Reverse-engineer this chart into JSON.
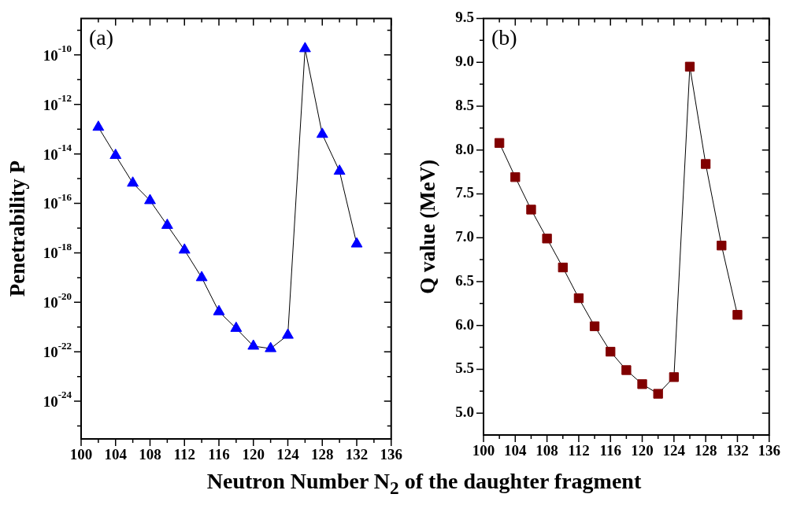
{
  "chart_data": [
    {
      "type": "line",
      "ylabel": "Penetrability P",
      "xlabel": "Neutron Number N$_{2}$ of the daughter fragment",
      "annotations": [
        "(a)"
      ],
      "log": "y",
      "marker": "triangle",
      "grid": false,
      "legend": false,
      "x": [
        102,
        104,
        106,
        108,
        110,
        112,
        114,
        116,
        118,
        120,
        122,
        124,
        126,
        128,
        130,
        132
      ],
      "series": [
        {
          "color": "#0000ff",
          "values": [
            1.2e-13,
            8.7e-15,
            6.6e-16,
            1.3e-16,
            1.3e-17,
            1.3e-18,
            1e-19,
            4.2e-21,
            8.9e-22,
            1.7e-22,
            1.35e-22,
            4.7e-22,
            1.8e-10,
            6.2e-14,
            2e-15,
            2.3e-18
          ]
        }
      ],
      "xlim": [
        100,
        136
      ],
      "xticks": [
        100,
        {
          "value": 102,
          "label": null
        },
        104,
        {
          "value": 106,
          "label": null
        },
        108,
        {
          "value": 110,
          "label": null
        },
        112,
        {
          "value": 114,
          "label": null
        },
        116,
        {
          "value": 118,
          "label": null
        },
        120,
        {
          "value": 122,
          "label": null
        },
        124,
        {
          "value": 126,
          "label": null
        },
        128,
        {
          "value": 130,
          "label": null
        },
        132,
        {
          "value": 134,
          "label": null
        },
        136
      ],
      "ylim": [
        3e-26,
        3e-09
      ],
      "yticks": [
        {
          "value": 1e-09,
          "label": null
        },
        {
          "value": 1e-10,
          "label": "10$^{-10}$"
        },
        {
          "value": 1e-11,
          "label": null
        },
        {
          "value": 1e-12,
          "label": "10$^{-12}$"
        },
        {
          "value": 1e-13,
          "label": null
        },
        {
          "value": 1e-14,
          "label": "10$^{-14}$"
        },
        {
          "value": 1e-15,
          "label": null
        },
        {
          "value": 1e-16,
          "label": "10$^{-16}$"
        },
        {
          "value": 1e-17,
          "label": null
        },
        {
          "value": 1e-18,
          "label": "10$^{-18}$"
        },
        {
          "value": 1e-19,
          "label": null
        },
        {
          "value": 1e-20,
          "label": "10$^{-20}$"
        },
        {
          "value": 1e-21,
          "label": null
        },
        {
          "value": 1e-22,
          "label": "10$^{-22}$"
        },
        {
          "value": 1e-23,
          "label": null
        },
        {
          "value": 1e-24,
          "label": "10$^{-24}$"
        },
        {
          "value": 1e-25,
          "label": null
        }
      ]
    },
    {
      "type": "line",
      "ylabel": "Q value (MeV)",
      "annotations": [
        "(b)"
      ],
      "marker": "square",
      "grid": false,
      "legend": false,
      "x": [
        102,
        104,
        106,
        108,
        110,
        112,
        114,
        116,
        118,
        120,
        122,
        124,
        126,
        128,
        130,
        132
      ],
      "series": [
        {
          "color": "#800000",
          "values": [
            8.08,
            7.69,
            7.32,
            6.99,
            6.66,
            6.31,
            5.99,
            5.7,
            5.49,
            5.33,
            5.22,
            5.41,
            8.95,
            7.84,
            6.91,
            6.12
          ]
        }
      ],
      "xlim": [
        100,
        136
      ],
      "xticks": [
        100,
        {
          "value": 102,
          "label": null
        },
        104,
        {
          "value": 106,
          "label": null
        },
        108,
        {
          "value": 110,
          "label": null
        },
        112,
        {
          "value": 114,
          "label": null
        },
        116,
        {
          "value": 118,
          "label": null
        },
        120,
        {
          "value": 122,
          "label": null
        },
        124,
        {
          "value": 126,
          "label": null
        },
        128,
        {
          "value": 130,
          "label": null
        },
        132,
        {
          "value": 134,
          "label": null
        },
        136
      ],
      "ylim": [
        4.75,
        9.5
      ],
      "yticks": [
        {
          "value": 5,
          "label": "5.0"
        },
        {
          "value": 5.25,
          "label": null
        },
        {
          "value": 5.5,
          "label": "5.5"
        },
        {
          "value": 5.75,
          "label": null
        },
        {
          "value": 6,
          "label": "6.0"
        },
        {
          "value": 6.25,
          "label": null
        },
        {
          "value": 6.5,
          "label": "6.5"
        },
        {
          "value": 6.75,
          "label": null
        },
        {
          "value": 7,
          "label": "7.0"
        },
        {
          "value": 7.25,
          "label": null
        },
        {
          "value": 7.5,
          "label": "7.5"
        },
        {
          "value": 7.75,
          "label": null
        },
        {
          "value": 8,
          "label": "8.0"
        },
        {
          "value": 8.25,
          "label": null
        },
        {
          "value": 8.5,
          "label": "8.5"
        },
        {
          "value": 8.75,
          "label": null
        },
        {
          "value": 9,
          "label": "9.0"
        },
        {
          "value": 9.25,
          "label": null
        },
        {
          "value": 9.5,
          "label": "9.5"
        }
      ]
    }
  ]
}
